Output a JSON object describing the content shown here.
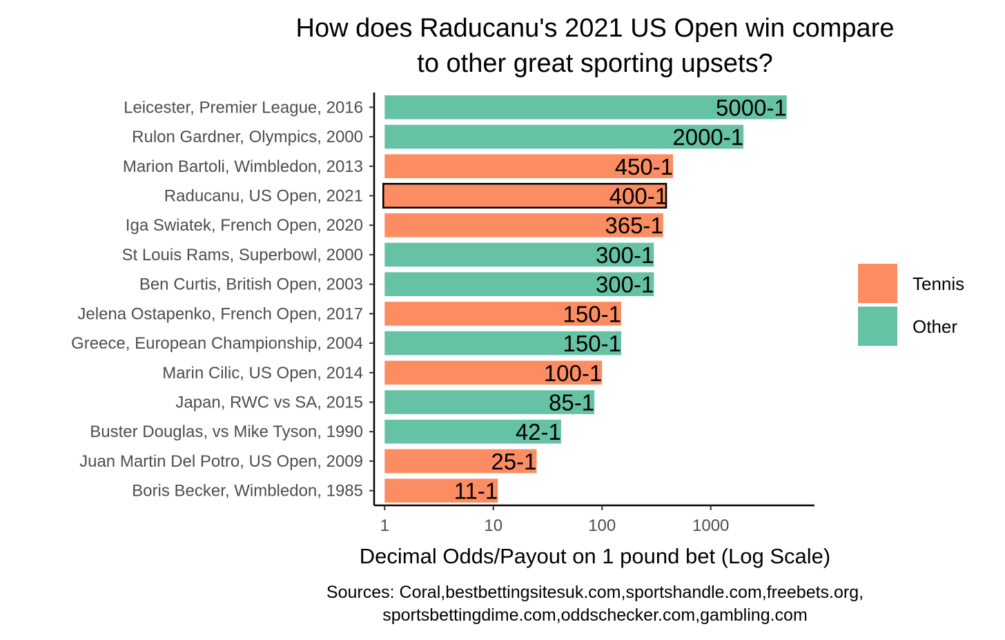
{
  "chart_data": {
    "type": "bar",
    "orientation": "horizontal",
    "title_lines": [
      "How does Raducanu's 2021 US Open win compare",
      "to other great sporting upsets?"
    ],
    "xlabel": "Decimal Odds/Payout on 1 pound bet (Log Scale)",
    "caption_lines": [
      "Sources: Coral,bestbettingsitesuk.com,sportshandle.com,freebets.org,",
      "sportsbettingdime.com,oddschecker.com,gambling.com"
    ],
    "x_scale": "log10",
    "xlim": [
      0.8,
      9000
    ],
    "x_ticks": [
      1,
      10,
      100,
      1000
    ],
    "x_tick_labels": [
      "1",
      "10",
      "100",
      "1000"
    ],
    "legend_position": "right",
    "legend": [
      {
        "key": "Tennis",
        "label": "Tennis",
        "color": "#fc8d62"
      },
      {
        "key": "Other",
        "label": "Other",
        "color": "#66c2a5"
      }
    ],
    "highlight_outline_color": "#000000",
    "bars": [
      {
        "label": "Leicester, Premier League, 2016",
        "value": 5000,
        "odds": "5000-1",
        "category": "Other",
        "highlight": false
      },
      {
        "label": "Rulon Gardner, Olympics, 2000",
        "value": 2000,
        "odds": "2000-1",
        "category": "Other",
        "highlight": false
      },
      {
        "label": "Marion Bartoli, Wimbledon, 2013",
        "value": 450,
        "odds": "450-1",
        "category": "Tennis",
        "highlight": false
      },
      {
        "label": "Raducanu, US Open, 2021",
        "value": 400,
        "odds": "400-1",
        "category": "Tennis",
        "highlight": true
      },
      {
        "label": "Iga Swiatek, French Open, 2020",
        "value": 365,
        "odds": "365-1",
        "category": "Tennis",
        "highlight": false
      },
      {
        "label": "St Louis Rams, Superbowl, 2000",
        "value": 300,
        "odds": "300-1",
        "category": "Other",
        "highlight": false
      },
      {
        "label": "Ben Curtis, British Open, 2003",
        "value": 300,
        "odds": "300-1",
        "category": "Other",
        "highlight": false
      },
      {
        "label": "Jelena Ostapenko, French Open, 2017",
        "value": 150,
        "odds": "150-1",
        "category": "Tennis",
        "highlight": false
      },
      {
        "label": "Greece, European Championship, 2004",
        "value": 150,
        "odds": "150-1",
        "category": "Other",
        "highlight": false
      },
      {
        "label": "Marin Cilic, US Open, 2014",
        "value": 100,
        "odds": "100-1",
        "category": "Tennis",
        "highlight": false
      },
      {
        "label": "Japan, RWC vs SA, 2015",
        "value": 85,
        "odds": "85-1",
        "category": "Other",
        "highlight": false
      },
      {
        "label": "Buster Douglas, vs Mike Tyson, 1990",
        "value": 42,
        "odds": "42-1",
        "category": "Other",
        "highlight": false
      },
      {
        "label": "Juan Martin Del Potro, US Open, 2009",
        "value": 25,
        "odds": "25-1",
        "category": "Tennis",
        "highlight": false
      },
      {
        "label": "Boris Becker, Wimbledon, 1985",
        "value": 11,
        "odds": "11-1",
        "category": "Tennis",
        "highlight": false
      }
    ]
  }
}
